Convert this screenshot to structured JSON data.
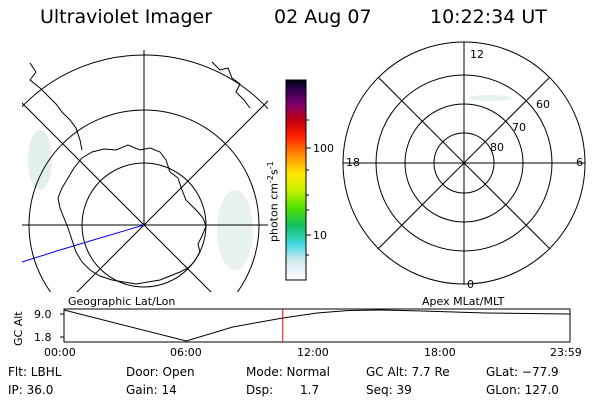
{
  "header": {
    "title": "Ultraviolet Imager",
    "date": "02 Aug 07",
    "time": "10:22:34 UT"
  },
  "left_panel": {
    "label": "Geographic Lat/Lon"
  },
  "right_panel": {
    "label": "Apex MLat/MLT",
    "mlt_labels": {
      "top": "12",
      "left": "18",
      "right": "6",
      "bottom": "0"
    },
    "lat_labels": [
      "60",
      "70",
      "80"
    ]
  },
  "colorbar": {
    "unit_label": "photon cm",
    "unit_exp1": "-2",
    "unit_s": "s",
    "unit_exp2": "-1",
    "ticks": [
      "100",
      "10"
    ]
  },
  "altitude_plot": {
    "ylabel": "GC Alt",
    "yticks": [
      "9.0",
      "1.8"
    ],
    "xticks": [
      "00:00",
      "06:00",
      "12:00",
      "18:00",
      "23:59"
    ],
    "current_time_hours": 10.376,
    "line_color": "#000000",
    "marker_color": "#ff0000"
  },
  "info": {
    "filter": "Flt: LBHL",
    "ip": "IP: 36.0",
    "door": "Door: Open",
    "gain": "Gain: 14",
    "mode": "Mode: Normal",
    "dsp_label": "Dsp:",
    "dsp_value": "1.7",
    "gc_alt": "GC Alt: 7.7 Re",
    "seq": "Seq: 39",
    "glat": "GLat: −77.9",
    "glon": "GLon: 127.0"
  },
  "colors": {
    "track": "#0000ff",
    "emission": "#c8e6d8"
  }
}
